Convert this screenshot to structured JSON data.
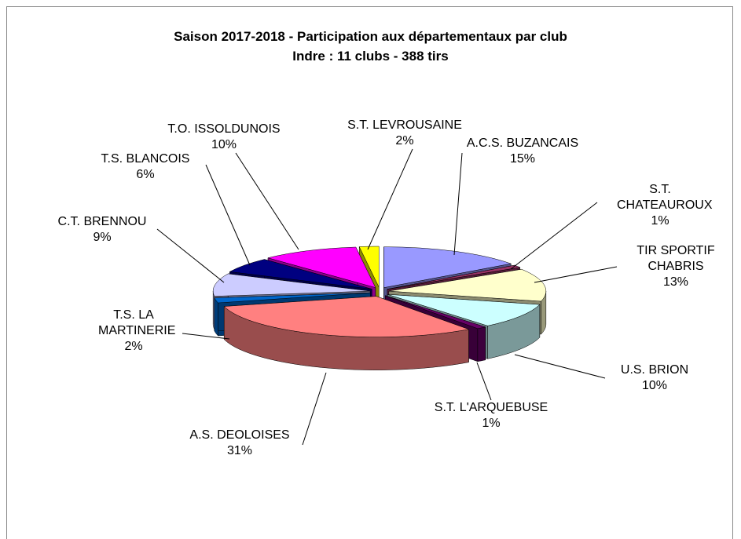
{
  "chart_data": {
    "type": "pie",
    "title": "Saison 2017-2018 - Participation aux départementaux par club",
    "subtitle": "Indre : 11 clubs - 388 tirs",
    "categories": [
      "A.C.S. BUZANCAIS",
      "S.T. CHATEAUROUX",
      "TIR SPORTIF CHABRIS",
      "U.S. BRION",
      "S.T. L'ARQUEBUSE",
      "A.S. DEOLOISES",
      "T.S. LA MARTINERIE",
      "C.T. BRENNOU",
      "T.S. BLANCOIS",
      "T.O. ISSOLDUNOIS",
      "S.T. LEVROUSAINE"
    ],
    "values": [
      15,
      1,
      13,
      10,
      1,
      31,
      2,
      9,
      6,
      10,
      2
    ],
    "value_labels": [
      "15%",
      "1%",
      "13%",
      "10%",
      "1%",
      "31%",
      "2%",
      "9%",
      "6%",
      "10%",
      "2%"
    ],
    "colors": [
      "#9999ff",
      "#993366",
      "#ffffcc",
      "#ccffff",
      "#660066",
      "#ff8080",
      "#0066cc",
      "#ccccff",
      "#000080",
      "#ff00ff",
      "#ffff00"
    ]
  }
}
